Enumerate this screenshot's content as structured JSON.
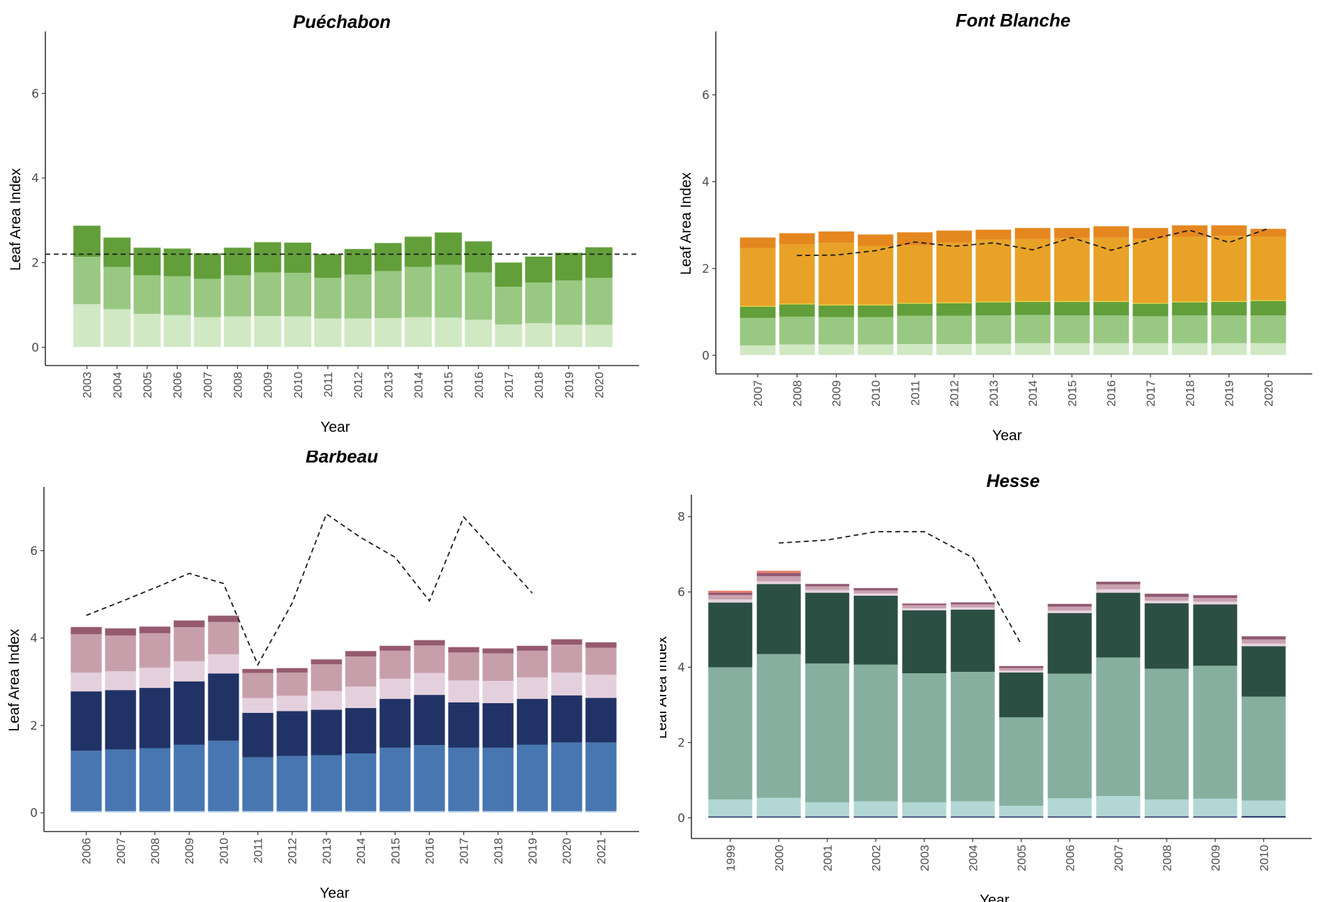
{
  "figure": {
    "description": "Four stacked-bar panels of Leaf Area Index per year by site, with dashed reference lines"
  },
  "chart_data": [
    {
      "id": "puechabon",
      "type": "bar",
      "stacked": true,
      "title": "Puéchabon",
      "xlabel": "Year",
      "ylabel": "Leaf Area Index",
      "ylim": [
        -0.3,
        7.3
      ],
      "yticks": [
        0,
        2,
        4,
        6
      ],
      "grid": false,
      "categories": [
        "2003",
        "2004",
        "2005",
        "2006",
        "2007",
        "2008",
        "2009",
        "2010",
        "2011",
        "2012",
        "2013",
        "2014",
        "2015",
        "2016",
        "2017",
        "2018",
        "2019",
        "2020"
      ],
      "series": [
        {
          "name": "layer-1",
          "color": "#d0e8c3",
          "values": [
            1.02,
            0.9,
            0.79,
            0.76,
            0.71,
            0.73,
            0.74,
            0.73,
            0.68,
            0.68,
            0.69,
            0.71,
            0.7,
            0.65,
            0.54,
            0.57,
            0.53,
            0.53
          ]
        },
        {
          "name": "layer-2",
          "color": "#99c882",
          "values": [
            1.12,
            1.0,
            0.91,
            0.92,
            0.91,
            0.97,
            1.03,
            1.03,
            0.96,
            1.04,
            1.11,
            1.19,
            1.25,
            1.12,
            0.89,
            0.96,
            1.05,
            1.11
          ]
        },
        {
          "name": "layer-3",
          "color": "#629e3a",
          "values": [
            0.74,
            0.7,
            0.66,
            0.66,
            0.61,
            0.66,
            0.72,
            0.72,
            0.57,
            0.61,
            0.67,
            0.72,
            0.77,
            0.74,
            0.58,
            0.62,
            0.66,
            0.73
          ]
        }
      ],
      "reference_line": {
        "style": "dashed",
        "type": "horizontal",
        "value": 2.2
      }
    },
    {
      "id": "font-blanche",
      "type": "bar",
      "stacked": true,
      "title": "Font Blanche",
      "xlabel": "Year",
      "ylabel": "Leaf Area Index",
      "ylim": [
        -0.3,
        7.3
      ],
      "yticks": [
        0,
        2,
        4,
        6
      ],
      "grid": false,
      "categories": [
        "2007",
        "2008",
        "2009",
        "2010",
        "2011",
        "2012",
        "2013",
        "2014",
        "2015",
        "2016",
        "2017",
        "2018",
        "2019",
        "2020"
      ],
      "series": [
        {
          "name": "layer-1",
          "color": "#d0e8c3",
          "values": [
            0.23,
            0.25,
            0.25,
            0.25,
            0.26,
            0.26,
            0.27,
            0.28,
            0.28,
            0.28,
            0.28,
            0.28,
            0.28,
            0.28
          ]
        },
        {
          "name": "layer-2",
          "color": "#99c882",
          "values": [
            0.63,
            0.64,
            0.63,
            0.63,
            0.65,
            0.65,
            0.65,
            0.65,
            0.64,
            0.64,
            0.62,
            0.64,
            0.64,
            0.64
          ]
        },
        {
          "name": "layer-3",
          "color": "#629e3a",
          "values": [
            0.26,
            0.28,
            0.27,
            0.27,
            0.28,
            0.29,
            0.3,
            0.3,
            0.31,
            0.31,
            0.29,
            0.3,
            0.31,
            0.33
          ]
        },
        {
          "name": "layer-4",
          "color": "#e3d43a",
          "values": [
            0.02,
            0.02,
            0.02,
            0.02,
            0.02,
            0.02,
            0.02,
            0.02,
            0.02,
            0.02,
            0.02,
            0.02,
            0.02,
            0.02
          ]
        },
        {
          "name": "layer-5",
          "color": "#e8a227",
          "values": [
            1.33,
            1.37,
            1.42,
            1.35,
            1.32,
            1.38,
            1.42,
            1.43,
            1.45,
            1.46,
            1.48,
            1.49,
            1.5,
            1.46
          ]
        },
        {
          "name": "layer-6",
          "color": "#e5871f",
          "values": [
            0.25,
            0.26,
            0.27,
            0.27,
            0.31,
            0.28,
            0.24,
            0.26,
            0.24,
            0.27,
            0.25,
            0.27,
            0.25,
            0.19
          ]
        }
      ],
      "reference_line": {
        "style": "dashed",
        "type": "series",
        "x": [
          "2008",
          "2009",
          "2010",
          "2011",
          "2012",
          "2013",
          "2014",
          "2015",
          "2016",
          "2017",
          "2018",
          "2019",
          "2020"
        ],
        "values": [
          2.3,
          2.31,
          2.41,
          2.61,
          2.51,
          2.59,
          2.43,
          2.71,
          2.42,
          2.67,
          2.88,
          2.6,
          2.92
        ]
      }
    },
    {
      "id": "barbeau",
      "type": "bar",
      "stacked": true,
      "title": "Barbeau",
      "xlabel": "Year",
      "ylabel": "Leaf Area Index",
      "ylim": [
        -0.3,
        7.3
      ],
      "yticks": [
        0,
        2,
        4,
        6
      ],
      "grid": false,
      "categories": [
        "2006",
        "2007",
        "2008",
        "2009",
        "2010",
        "2011",
        "2012",
        "2013",
        "2014",
        "2015",
        "2016",
        "2017",
        "2018",
        "2019",
        "2020",
        "2021"
      ],
      "series": [
        {
          "name": "layer-1",
          "color": "#bcd3ea",
          "values": [
            0.04,
            0.04,
            0.04,
            0.04,
            0.04,
            0.04,
            0.04,
            0.04,
            0.04,
            0.04,
            0.04,
            0.04,
            0.04,
            0.04,
            0.04,
            0.04
          ]
        },
        {
          "name": "layer-2",
          "color": "#4876b0",
          "values": [
            1.38,
            1.41,
            1.44,
            1.52,
            1.61,
            1.23,
            1.26,
            1.28,
            1.32,
            1.45,
            1.51,
            1.45,
            1.45,
            1.52,
            1.57,
            1.57
          ]
        },
        {
          "name": "layer-3",
          "color": "#213366",
          "values": [
            1.36,
            1.36,
            1.38,
            1.45,
            1.54,
            1.02,
            1.03,
            1.04,
            1.04,
            1.12,
            1.15,
            1.04,
            1.02,
            1.05,
            1.08,
            1.02
          ]
        },
        {
          "name": "layer-4",
          "color": "#e4d0dd",
          "values": [
            0.43,
            0.43,
            0.46,
            0.46,
            0.44,
            0.34,
            0.35,
            0.43,
            0.49,
            0.46,
            0.5,
            0.5,
            0.51,
            0.49,
            0.52,
            0.53
          ]
        },
        {
          "name": "layer-5",
          "color": "#c79fab",
          "values": [
            0.88,
            0.82,
            0.79,
            0.78,
            0.74,
            0.57,
            0.53,
            0.61,
            0.69,
            0.64,
            0.63,
            0.64,
            0.63,
            0.61,
            0.64,
            0.62
          ]
        },
        {
          "name": "layer-6",
          "color": "#955a70",
          "values": [
            0.17,
            0.17,
            0.16,
            0.16,
            0.15,
            0.1,
            0.11,
            0.12,
            0.13,
            0.12,
            0.13,
            0.13,
            0.12,
            0.12,
            0.13,
            0.13
          ]
        }
      ],
      "reference_line": {
        "style": "dashed",
        "type": "series",
        "x": [
          "2006",
          "2007",
          "2008",
          "2009",
          "2010",
          "2011",
          "2012",
          "2013",
          "2014",
          "2015",
          "2016",
          "2017",
          "2018",
          "2019"
        ],
        "values": [
          4.52,
          4.83,
          5.15,
          5.48,
          5.25,
          3.39,
          4.8,
          6.84,
          6.3,
          5.85,
          4.85,
          6.77,
          5.9,
          5.03
        ]
      }
    },
    {
      "id": "hesse",
      "type": "bar",
      "stacked": true,
      "title": "Hesse",
      "xlabel": "Year",
      "ylabel": "Leaf Area Index",
      "ylim": [
        -0.4,
        8.4
      ],
      "yticks": [
        0,
        2,
        4,
        6,
        8
      ],
      "grid": false,
      "categories": [
        "1999",
        "2000",
        "2001",
        "2002",
        "2003",
        "2004",
        "2005",
        "2006",
        "2007",
        "2008",
        "2009",
        "2010"
      ],
      "series": [
        {
          "name": "layer-1",
          "color": "#1f3366",
          "values": [
            0.04,
            0.04,
            0.04,
            0.04,
            0.04,
            0.04,
            0.04,
            0.04,
            0.04,
            0.04,
            0.04,
            0.05
          ]
        },
        {
          "name": "layer-2",
          "color": "#b2d7d5",
          "values": [
            0.45,
            0.49,
            0.37,
            0.4,
            0.37,
            0.4,
            0.28,
            0.48,
            0.54,
            0.45,
            0.47,
            0.41
          ]
        },
        {
          "name": "layer-3",
          "color": "#86af9f",
          "values": [
            3.51,
            3.82,
            3.69,
            3.63,
            3.43,
            3.44,
            2.35,
            3.31,
            3.68,
            3.47,
            3.53,
            2.76
          ]
        },
        {
          "name": "layer-4",
          "color": "#2c4f43",
          "values": [
            1.72,
            1.86,
            1.88,
            1.83,
            1.67,
            1.65,
            1.19,
            1.61,
            1.72,
            1.74,
            1.63,
            1.34
          ]
        },
        {
          "name": "layer-5",
          "color": "#e6d3df",
          "values": [
            0.08,
            0.07,
            0.07,
            0.06,
            0.06,
            0.06,
            0.05,
            0.07,
            0.09,
            0.07,
            0.07,
            0.07
          ]
        },
        {
          "name": "layer-6",
          "color": "#c9a1af",
          "values": [
            0.12,
            0.14,
            0.1,
            0.08,
            0.08,
            0.08,
            0.07,
            0.1,
            0.13,
            0.1,
            0.1,
            0.11
          ]
        },
        {
          "name": "layer-7",
          "color": "#8f5670",
          "values": [
            0.06,
            0.08,
            0.07,
            0.07,
            0.05,
            0.06,
            0.06,
            0.08,
            0.08,
            0.09,
            0.08,
            0.09
          ]
        },
        {
          "name": "layer-8",
          "color": "#e27c6f",
          "values": [
            0.06,
            0.07,
            0.0,
            0.0,
            0.0,
            0.0,
            0.0,
            0.0,
            0.0,
            0.0,
            0.0,
            0.0
          ]
        }
      ],
      "reference_line": {
        "style": "dashed",
        "type": "series",
        "x": [
          "2000",
          "2001",
          "2002",
          "2003",
          "2004",
          "2005"
        ],
        "values": [
          7.3,
          7.38,
          7.6,
          7.6,
          6.91,
          4.61
        ]
      }
    }
  ]
}
